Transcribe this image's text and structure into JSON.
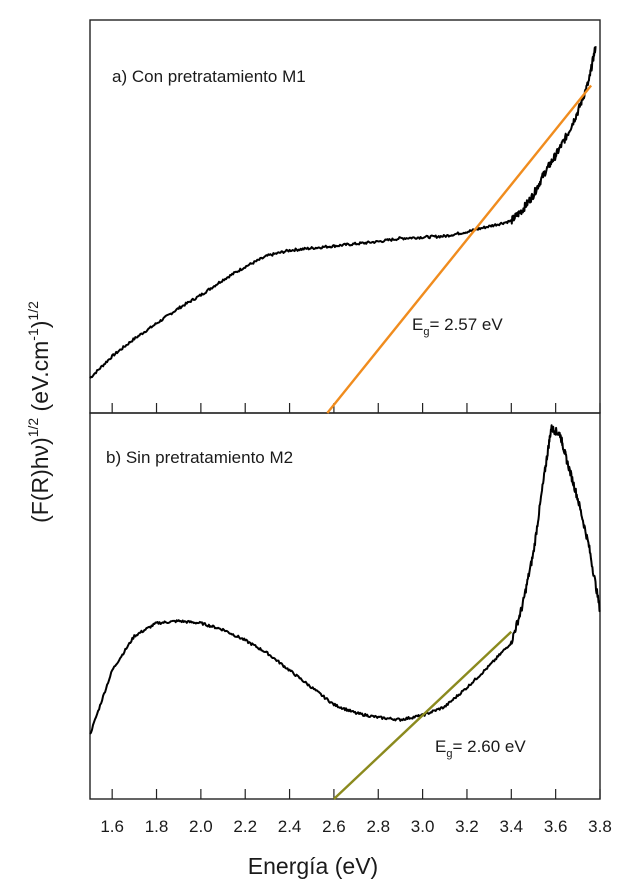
{
  "chart_data": [
    {
      "type": "line",
      "panel": "a",
      "title": "a) Con pretratamiento M1",
      "band_gap": {
        "label_main": "E",
        "label_sub": "g",
        "label_value": "= 2.57 eV",
        "value_eV": 2.57
      },
      "series": [
        {
          "name": "M1",
          "color": "#000000",
          "x": [
            1.5,
            1.6,
            1.7,
            1.8,
            1.9,
            2.0,
            2.1,
            2.2,
            2.3,
            2.4,
            2.5,
            2.6,
            2.7,
            2.8,
            2.9,
            3.0,
            3.1,
            3.2,
            3.3,
            3.4,
            3.45,
            3.5,
            3.55,
            3.6,
            3.65,
            3.7,
            3.75,
            3.78
          ],
          "y": [
            0.16,
            0.26,
            0.34,
            0.41,
            0.48,
            0.54,
            0.61,
            0.67,
            0.72,
            0.745,
            0.755,
            0.765,
            0.775,
            0.785,
            0.8,
            0.805,
            0.81,
            0.83,
            0.855,
            0.88,
            0.93,
            1.0,
            1.1,
            1.18,
            1.27,
            1.38,
            1.52,
            1.68
          ]
        },
        {
          "name": "Tauc fit M1",
          "color": "#f08c1e",
          "x": [
            2.57,
            3.76
          ],
          "y": [
            0.0,
            1.5
          ]
        }
      ]
    },
    {
      "type": "line",
      "panel": "b",
      "title": "b) Sin pretratamiento M2",
      "band_gap": {
        "label_main": "E",
        "label_sub": "g",
        "label_value": "= 2.60 eV",
        "value_eV": 2.6
      },
      "series": [
        {
          "name": "M2",
          "color": "#000000",
          "x": [
            1.5,
            1.6,
            1.7,
            1.8,
            1.9,
            2.0,
            2.1,
            2.2,
            2.3,
            2.4,
            2.5,
            2.6,
            2.7,
            2.8,
            2.9,
            3.0,
            3.1,
            3.2,
            3.3,
            3.4,
            3.45,
            3.5,
            3.55,
            3.58,
            3.62,
            3.65,
            3.7,
            3.75,
            3.8
          ],
          "y": [
            0.3,
            0.6,
            0.76,
            0.82,
            0.83,
            0.82,
            0.79,
            0.74,
            0.68,
            0.6,
            0.52,
            0.44,
            0.4,
            0.38,
            0.37,
            0.39,
            0.43,
            0.52,
            0.62,
            0.73,
            0.9,
            1.15,
            1.52,
            1.73,
            1.7,
            1.58,
            1.4,
            1.18,
            0.88
          ]
        },
        {
          "name": "Tauc fit M2",
          "color": "#8b8a1e",
          "x": [
            2.6,
            3.4
          ],
          "y": [
            0.0,
            0.78
          ]
        }
      ]
    }
  ],
  "axes": {
    "xlabel": "Energía (eV)",
    "ylabel_parts": {
      "a": "(F(R)hν)",
      "b": "1/2",
      "c": " (eV.cm",
      "d": "-1",
      "e": ")",
      "f": "1/2"
    },
    "xlim": [
      1.5,
      3.8
    ],
    "x_ticks": [
      "1.6",
      "1.8",
      "2.0",
      "2.2",
      "2.4",
      "2.6",
      "2.8",
      "3.0",
      "3.2",
      "3.4",
      "3.6",
      "3.8"
    ],
    "panel_ylim": {
      "a": [
        0,
        1.8
      ],
      "b": [
        0,
        1.8
      ]
    }
  }
}
